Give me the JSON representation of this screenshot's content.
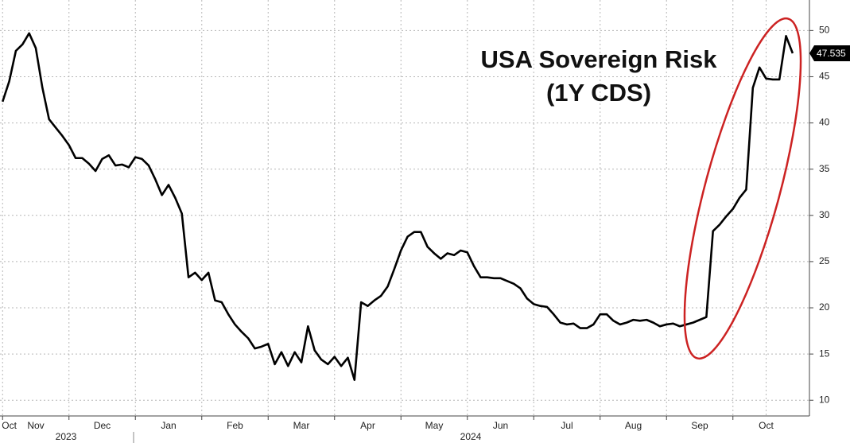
{
  "chart_data": {
    "type": "line",
    "title": "USA Sovereign Risk",
    "subtitle": "(1Y CDS)",
    "categories": [
      null,
      "Oct",
      null,
      null,
      null,
      "Nov",
      null,
      null,
      null,
      null,
      null,
      null,
      null,
      null,
      null,
      "Dec",
      null,
      null,
      null,
      null,
      null,
      null,
      null,
      null,
      null,
      "Jan",
      null,
      null,
      null,
      null,
      null,
      null,
      null,
      null,
      null,
      "Feb",
      null,
      null,
      null,
      null,
      null,
      null,
      null,
      null,
      null,
      "Mar",
      null,
      null,
      null,
      null,
      null,
      null,
      null,
      null,
      null,
      "Apr",
      null,
      null,
      null,
      null,
      null,
      null,
      null,
      null,
      null,
      "May",
      null,
      null,
      null,
      null,
      null,
      null,
      null,
      null,
      null,
      "Jun",
      null,
      null,
      null,
      null,
      null,
      null,
      null,
      null,
      null,
      "Jul",
      null,
      null,
      null,
      null,
      null,
      null,
      null,
      null,
      null,
      "Aug",
      null,
      null,
      null,
      null,
      null,
      null,
      null,
      null,
      null,
      "Sep",
      null,
      null,
      null,
      null,
      null,
      null,
      null,
      null,
      null,
      "Oct",
      null,
      null,
      null,
      null
    ],
    "x_group_labels": [
      "2023",
      "2024"
    ],
    "series": [
      {
        "name": "USA 1Y CDS",
        "color": "#000000",
        "values": [
          42.3,
          44.5,
          47.8,
          48.5,
          49.7,
          48.1,
          43.8,
          40.4,
          39.5,
          38.6,
          37.6,
          36.2,
          36.2,
          35.6,
          34.8,
          36.1,
          36.5,
          35.4,
          35.5,
          35.2,
          36.3,
          36.1,
          35.4,
          33.9,
          32.2,
          33.3,
          31.9,
          30.2,
          23.3,
          23.8,
          23.0,
          23.8,
          20.8,
          20.6,
          19.3,
          18.2,
          17.4,
          16.7,
          15.6,
          15.8,
          16.1,
          13.9,
          15.2,
          13.7,
          15.2,
          14.1,
          18.0,
          15.4,
          14.4,
          13.9,
          14.7,
          13.7,
          14.6,
          12.2,
          20.6,
          20.2,
          20.8,
          21.3,
          22.3,
          24.2,
          26.2,
          27.7,
          28.2,
          28.2,
          26.6,
          25.9,
          25.3,
          25.9,
          25.7,
          26.2,
          26.0,
          24.5,
          23.3,
          23.3,
          23.2,
          23.2,
          22.9,
          22.6,
          22.1,
          21.0,
          20.4,
          20.2,
          20.1,
          19.3,
          18.4,
          18.2,
          18.3,
          17.8,
          17.8,
          18.2,
          19.3,
          19.3,
          18.6,
          18.2,
          18.4,
          18.7,
          18.6,
          18.7,
          18.4,
          18.0,
          18.2,
          18.3,
          18.0,
          18.2,
          18.4,
          18.7,
          19.0,
          28.3,
          29.0,
          29.9,
          30.7,
          31.9,
          32.8,
          43.8,
          46.0,
          44.8,
          44.7,
          44.7,
          49.4,
          47.535
        ]
      }
    ],
    "ylim": [
      8.3,
      53.3
    ],
    "yticks": [
      10,
      15,
      20,
      25,
      30,
      35,
      40,
      45,
      50
    ],
    "grid": true,
    "highlight_color": "#cc2222"
  }
}
